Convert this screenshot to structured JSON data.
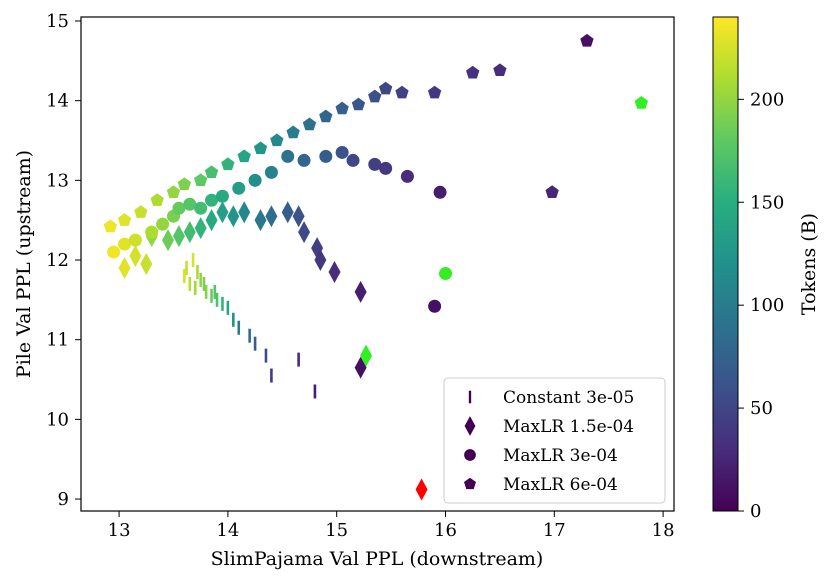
{
  "chart_data": {
    "type": "scatter",
    "xlabel": "SlimPajama Val PPL (downstream)",
    "ylabel": "Pile Val PPL (upstream)",
    "xlim": [
      12.65,
      18.1
    ],
    "ylim": [
      8.85,
      15.05
    ],
    "x_ticks": [
      13,
      14,
      15,
      16,
      17,
      18
    ],
    "y_ticks": [
      9,
      10,
      11,
      12,
      13,
      14,
      15
    ],
    "colorbar": {
      "label": "Tokens (B)",
      "range": [
        0,
        240
      ],
      "ticks": [
        0,
        50,
        100,
        150,
        200
      ],
      "colormap": "viridis"
    },
    "legend": {
      "placement": "lower-right",
      "entries": [
        "Constant 3e-05",
        "MaxLR 1.5e-04",
        "MaxLR 3e-04",
        "MaxLR 6e-04"
      ]
    },
    "series": [
      {
        "name": "Constant 3e-05",
        "marker": "vline",
        "points": [
          [
            13.6,
            11.8,
            225
          ],
          [
            13.65,
            11.7,
            215
          ],
          [
            13.7,
            11.65,
            205
          ],
          [
            13.62,
            11.9,
            220
          ],
          [
            13.72,
            11.85,
            210
          ],
          [
            13.8,
            11.6,
            195
          ],
          [
            13.75,
            11.75,
            200
          ],
          [
            13.85,
            11.55,
            185
          ],
          [
            13.9,
            11.5,
            170
          ],
          [
            13.95,
            11.45,
            155
          ],
          [
            14.0,
            11.4,
            140
          ],
          [
            14.05,
            11.25,
            120
          ],
          [
            14.1,
            11.15,
            100
          ],
          [
            14.2,
            11.05,
            85
          ],
          [
            14.25,
            10.95,
            70
          ],
          [
            14.35,
            10.8,
            55
          ],
          [
            14.4,
            10.55,
            40
          ],
          [
            14.65,
            10.75,
            30
          ],
          [
            14.8,
            10.35,
            20
          ],
          [
            13.68,
            12.0,
            225
          ],
          [
            13.78,
            11.7,
            190
          ],
          [
            13.88,
            11.6,
            175
          ]
        ]
      },
      {
        "name": "MaxLR 1.5e-04",
        "marker": "diamond",
        "points": [
          [
            13.05,
            11.9,
            230
          ],
          [
            13.15,
            12.05,
            225
          ],
          [
            13.25,
            11.95,
            220
          ],
          [
            13.3,
            12.3,
            200
          ],
          [
            13.45,
            12.25,
            185
          ],
          [
            13.55,
            12.3,
            175
          ],
          [
            13.65,
            12.35,
            165
          ],
          [
            13.75,
            12.4,
            155
          ],
          [
            13.85,
            12.5,
            145
          ],
          [
            13.95,
            12.6,
            135
          ],
          [
            14.05,
            12.55,
            125
          ],
          [
            14.15,
            12.6,
            110
          ],
          [
            14.3,
            12.5,
            95
          ],
          [
            14.4,
            12.55,
            85
          ],
          [
            14.55,
            12.6,
            70
          ],
          [
            14.65,
            12.55,
            60
          ],
          [
            14.7,
            12.35,
            55
          ],
          [
            14.82,
            12.15,
            45
          ],
          [
            14.85,
            12.0,
            40
          ],
          [
            14.98,
            11.85,
            30
          ],
          [
            15.22,
            11.6,
            20
          ],
          [
            15.22,
            10.65,
            10
          ],
          [
            15.27,
            10.8,
            120
          ],
          [
            15.78,
            9.12,
            0
          ]
        ]
      },
      {
        "name": "MaxLR 3e-04",
        "marker": "circle",
        "points": [
          [
            12.95,
            12.1,
            235
          ],
          [
            13.05,
            12.2,
            230
          ],
          [
            13.15,
            12.25,
            222
          ],
          [
            13.3,
            12.35,
            210
          ],
          [
            13.4,
            12.45,
            200
          ],
          [
            13.5,
            12.55,
            190
          ],
          [
            13.55,
            12.65,
            182
          ],
          [
            13.65,
            12.7,
            175
          ],
          [
            13.75,
            12.65,
            165
          ],
          [
            13.85,
            12.75,
            155
          ],
          [
            13.95,
            12.8,
            145
          ],
          [
            14.1,
            12.9,
            132
          ],
          [
            14.25,
            13.0,
            118
          ],
          [
            14.4,
            13.1,
            105
          ],
          [
            14.55,
            13.3,
            90
          ],
          [
            14.7,
            13.25,
            80
          ],
          [
            14.9,
            13.3,
            70
          ],
          [
            15.05,
            13.35,
            60
          ],
          [
            15.15,
            13.25,
            52
          ],
          [
            15.35,
            13.2,
            45
          ],
          [
            15.45,
            13.15,
            40
          ],
          [
            15.65,
            13.05,
            30
          ],
          [
            15.95,
            12.85,
            20
          ],
          [
            15.9,
            11.42,
            10
          ],
          [
            16.0,
            11.83,
            140
          ]
        ]
      },
      {
        "name": "MaxLR 6e-04",
        "marker": "pentagon",
        "points": [
          [
            12.92,
            12.42,
            235
          ],
          [
            13.05,
            12.5,
            228
          ],
          [
            13.2,
            12.6,
            220
          ],
          [
            13.35,
            12.75,
            210
          ],
          [
            13.5,
            12.85,
            200
          ],
          [
            13.6,
            12.95,
            192
          ],
          [
            13.75,
            13.0,
            180
          ],
          [
            13.85,
            13.1,
            168
          ],
          [
            14.0,
            13.2,
            155
          ],
          [
            14.15,
            13.3,
            140
          ],
          [
            14.3,
            13.4,
            125
          ],
          [
            14.45,
            13.5,
            112
          ],
          [
            14.6,
            13.6,
            100
          ],
          [
            14.75,
            13.7,
            90
          ],
          [
            14.9,
            13.8,
            80
          ],
          [
            15.05,
            13.9,
            72
          ],
          [
            15.2,
            13.95,
            65
          ],
          [
            15.35,
            14.05,
            58
          ],
          [
            15.45,
            14.15,
            52
          ],
          [
            15.6,
            14.1,
            46
          ],
          [
            15.9,
            14.1,
            40
          ],
          [
            16.25,
            14.35,
            35
          ],
          [
            16.5,
            14.38,
            30
          ],
          [
            16.98,
            12.85,
            25
          ],
          [
            17.3,
            14.75,
            10
          ],
          [
            17.8,
            13.97,
            150
          ]
        ]
      }
    ]
  }
}
